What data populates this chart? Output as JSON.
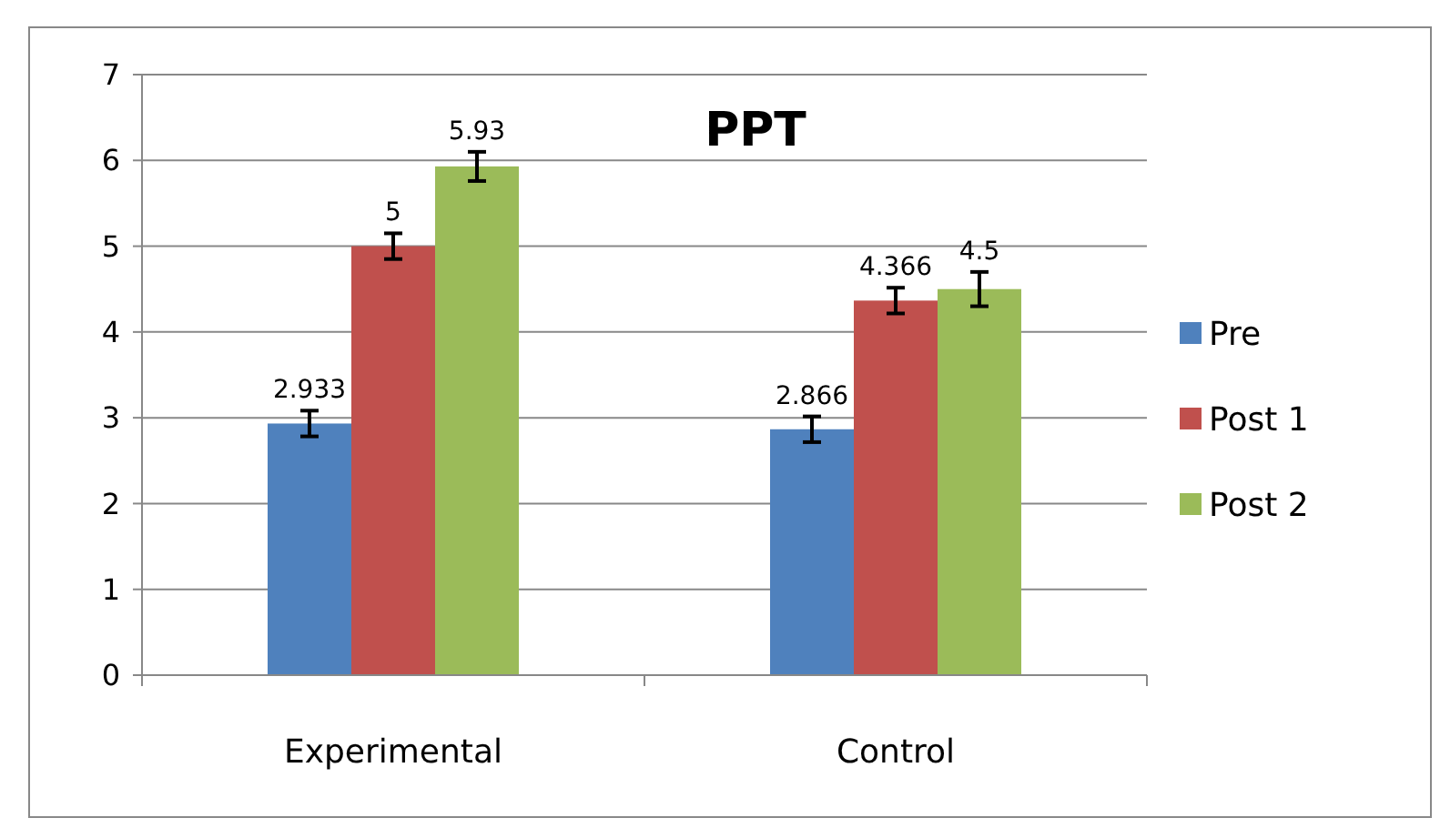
{
  "chart_data": {
    "type": "bar",
    "title": "PPT",
    "categories": [
      "Experimental",
      "Control"
    ],
    "series": [
      {
        "name": "Pre",
        "color": "#4f81bd",
        "values": [
          2.933,
          2.866
        ],
        "errors": [
          0.15,
          0.15
        ]
      },
      {
        "name": "Post 1",
        "color": "#c0504d",
        "values": [
          5,
          4.366
        ],
        "errors": [
          0.15,
          0.15
        ]
      },
      {
        "name": "Post 2",
        "color": "#9bbb59",
        "values": [
          5.93,
          4.5
        ],
        "errors": [
          0.17,
          0.2
        ]
      }
    ],
    "ylim": [
      0,
      7
    ],
    "yticks": [
      0,
      1,
      2,
      3,
      4,
      5,
      6,
      7
    ],
    "grid": "y",
    "legend": "right",
    "data_labels": true
  }
}
